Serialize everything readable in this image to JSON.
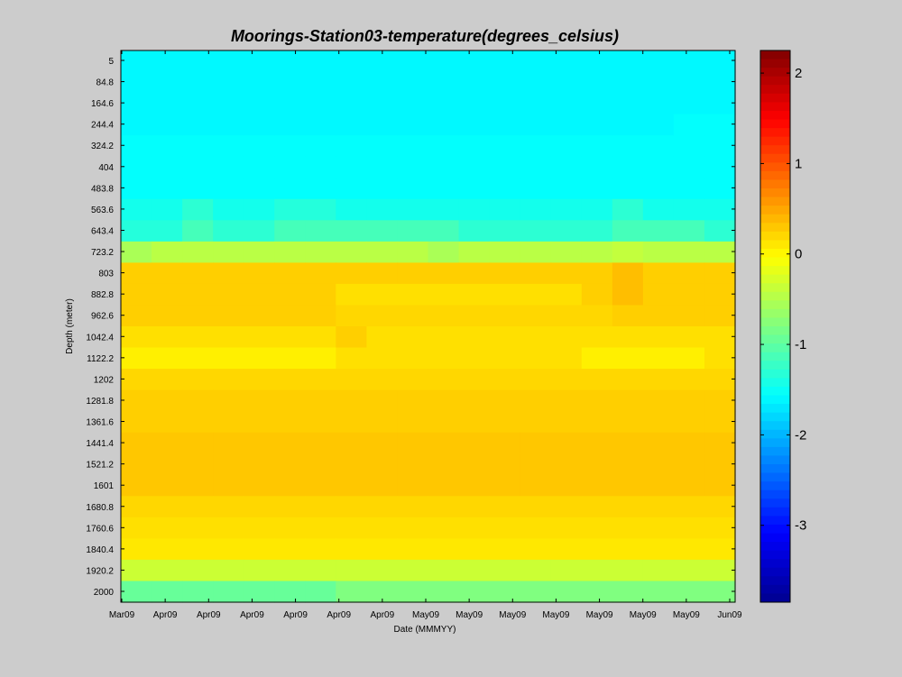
{
  "chart_data": {
    "type": "heatmap",
    "title": "Moorings-Station03-temperature(degrees_celsius)",
    "xlabel": "Date (MMMYY)",
    "ylabel": "Depth (meter)",
    "x_tick_labels": [
      "Mar09",
      "Apr09",
      "Apr09",
      "Apr09",
      "Apr09",
      "Apr09",
      "Apr09",
      "May09",
      "May09",
      "May09",
      "May09",
      "May09",
      "May09",
      "May09",
      "Jun09"
    ],
    "depth_ticks": [
      5,
      84.8,
      164.6,
      244.4,
      324.2,
      404,
      483.8,
      563.6,
      643.4,
      723.2,
      803,
      882.8,
      962.6,
      1042.4,
      1122.2,
      1202,
      1281.8,
      1361.6,
      1441.4,
      1521.2,
      1601,
      1680.8,
      1760.6,
      1840.4,
      1920.2,
      2000
    ],
    "y_reversed": true,
    "colorbar": {
      "colormap": "jet",
      "range": [
        -3.85,
        2.25
      ],
      "tick_values": [
        2,
        1,
        0,
        -1,
        -2,
        -3
      ],
      "tick_labels": [
        "2",
        "1",
        "0",
        "-1",
        "-2",
        "-3"
      ]
    },
    "grid": false,
    "n_time_columns": 20,
    "temperature_rows": [
      {
        "depth": 5,
        "base": -1.6
      },
      {
        "depth": 84.8,
        "base": -1.6
      },
      {
        "depth": 164.6,
        "base": -1.6
      },
      {
        "depth": 244.4,
        "base": -1.6,
        "overrides": [
          [
            18,
            -1.55
          ],
          [
            19,
            -1.55
          ]
        ]
      },
      {
        "depth": 324.2,
        "base": -1.55
      },
      {
        "depth": 404,
        "base": -1.55
      },
      {
        "depth": 483.8,
        "base": -1.55
      },
      {
        "depth": 563.6,
        "base": -1.45,
        "overrides": [
          [
            2,
            -1.3
          ],
          [
            5,
            -1.35
          ],
          [
            6,
            -1.35
          ],
          [
            16,
            -1.3
          ]
        ]
      },
      {
        "depth": 643.4,
        "base": -1.15,
        "overrides": [
          [
            0,
            -1.35
          ],
          [
            1,
            -1.35
          ],
          [
            3,
            -1.3
          ],
          [
            4,
            -1.3
          ],
          [
            11,
            -1.3
          ],
          [
            12,
            -1.3
          ],
          [
            13,
            -1.3
          ],
          [
            14,
            -1.3
          ],
          [
            15,
            -1.3
          ],
          [
            19,
            -1.3
          ]
        ]
      },
      {
        "depth": 723.2,
        "base": -0.45,
        "overrides": [
          [
            0,
            -0.55
          ],
          [
            10,
            -0.55
          ],
          [
            16,
            -0.4
          ]
        ]
      },
      {
        "depth": 803,
        "base": 0.25,
        "overrides": [
          [
            16,
            0.35
          ]
        ]
      },
      {
        "depth": 882.8,
        "base": 0.25,
        "overrides": [
          [
            7,
            0.15
          ],
          [
            8,
            0.15
          ],
          [
            9,
            0.15
          ],
          [
            10,
            0.15
          ],
          [
            11,
            0.15
          ],
          [
            12,
            0.15
          ],
          [
            13,
            0.15
          ],
          [
            14,
            0.15
          ],
          [
            16,
            0.35
          ]
        ]
      },
      {
        "depth": 962.6,
        "base": 0.2,
        "overrides": [
          [
            0,
            0.25
          ],
          [
            1,
            0.25
          ],
          [
            2,
            0.25
          ],
          [
            3,
            0.25
          ],
          [
            4,
            0.25
          ],
          [
            5,
            0.25
          ],
          [
            6,
            0.25
          ],
          [
            16,
            0.25
          ],
          [
            17,
            0.25
          ],
          [
            18,
            0.25
          ],
          [
            19,
            0.25
          ]
        ]
      },
      {
        "depth": 1042.4,
        "base": 0.15,
        "overrides": [
          [
            7,
            0.25
          ]
        ]
      },
      {
        "depth": 1122.2,
        "base": 0.15,
        "overrides": [
          [
            0,
            0.05
          ],
          [
            1,
            0.05
          ],
          [
            2,
            0.05
          ],
          [
            3,
            0.05
          ],
          [
            4,
            0.05
          ],
          [
            5,
            0.05
          ],
          [
            6,
            0.05
          ],
          [
            15,
            0.05
          ],
          [
            16,
            0.05
          ],
          [
            17,
            0.05
          ],
          [
            18,
            0.05
          ]
        ]
      },
      {
        "depth": 1202,
        "base": 0.2
      },
      {
        "depth": 1281.8,
        "base": 0.25
      },
      {
        "depth": 1361.6,
        "base": 0.25
      },
      {
        "depth": 1441.4,
        "base": 0.3
      },
      {
        "depth": 1521.2,
        "base": 0.3
      },
      {
        "depth": 1601,
        "base": 0.3
      },
      {
        "depth": 1680.8,
        "base": 0.2
      },
      {
        "depth": 1760.6,
        "base": 0.15
      },
      {
        "depth": 1840.4,
        "base": 0.1
      },
      {
        "depth": 1920.2,
        "base": -0.35
      },
      {
        "depth": 2000,
        "base": -0.95,
        "overrides": [
          [
            7,
            -0.8
          ],
          [
            8,
            -0.8
          ],
          [
            9,
            -0.8
          ],
          [
            10,
            -0.8
          ],
          [
            11,
            -0.8
          ],
          [
            12,
            -0.8
          ],
          [
            13,
            -0.8
          ],
          [
            14,
            -0.8
          ],
          [
            15,
            -0.8
          ],
          [
            16,
            -0.8
          ],
          [
            17,
            -0.8
          ],
          [
            18,
            -0.8
          ],
          [
            19,
            -0.8
          ]
        ]
      }
    ]
  }
}
